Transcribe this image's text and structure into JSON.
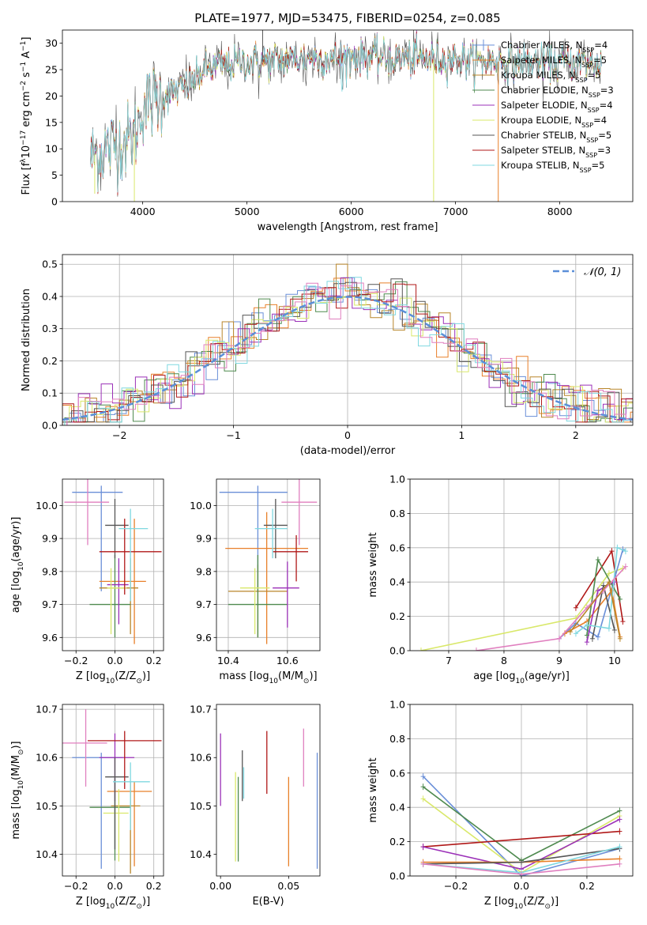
{
  "colors": {
    "Chabrier MILES": "#6a8fd8",
    "Salpeter MILES": "#e8802a",
    "Kroupa MILES": "#b8862a",
    "Chabrier ELODIE": "#4f8a4f",
    "Salpeter ELODIE": "#9b30b8",
    "Kroupa ELODIE": "#d9e86a",
    "Chabrier STELIB": "#555555",
    "Salpeter STELIB": "#b01818",
    "Kroupa STELIB": "#7fd8e0",
    "pink": "#e07fbf",
    "normal_curve": "#5b8fd8"
  },
  "chart_data": [
    {
      "id": "spectrum",
      "type": "line",
      "title": "PLATE=1977, MJD=53475, FIBERID=0254, z=0.085",
      "xlabel": "wavelength [Angstrom, rest frame]",
      "ylabel_parts": [
        "Flux [f",
        "λ",
        "10",
        "−17",
        " erg cm",
        "−2",
        " s",
        "−1",
        " A",
        "−1",
        "]"
      ],
      "xlim": [
        3230,
        8700
      ],
      "ylim": [
        0,
        32.5
      ],
      "xticks": [
        4000,
        5000,
        6000,
        7000,
        8000
      ],
      "yticks": [
        0,
        5,
        10,
        15,
        20,
        25,
        30
      ],
      "grid": false,
      "legend_position": "upper-right",
      "legend": [
        {
          "name": "Chabrier MILES",
          "nssp": "4"
        },
        {
          "name": "Salpeter MILES",
          "nssp": "5"
        },
        {
          "name": "Kroupa MILES",
          "nssp": "5"
        },
        {
          "name": "Chabrier ELODIE",
          "nssp": "3"
        },
        {
          "name": "Salpeter ELODIE",
          "nssp": "4"
        },
        {
          "name": "Kroupa ELODIE",
          "nssp": "4"
        },
        {
          "name": "Chabrier STELIB",
          "nssp": "5"
        },
        {
          "name": "Salpeter STELIB",
          "nssp": "3"
        },
        {
          "name": "Kroupa STELIB",
          "nssp": "5"
        }
      ],
      "envelope": {
        "x": [
          3500,
          3700,
          3900,
          3950,
          4000,
          4200,
          4400,
          4600,
          4800,
          5000,
          5200,
          5400,
          5600,
          5800,
          6000,
          6200,
          6400,
          6600,
          6800,
          7000,
          7200,
          7400,
          7600,
          7800,
          8000,
          8200,
          8400
        ],
        "y": [
          8.5,
          10.5,
          12,
          14,
          18,
          20,
          21.5,
          25,
          26,
          26.5,
          26.5,
          27,
          27.2,
          27,
          27.5,
          27.3,
          27,
          27.2,
          26.8,
          27,
          26.5,
          26.5,
          26.5,
          26.5,
          26.3,
          26.2,
          26
        ]
      },
      "spikes": [
        {
          "x": 5150,
          "y": 32.5
        },
        {
          "x": 3920,
          "y": 0
        },
        {
          "x": 6790,
          "y": 0
        },
        {
          "x": 7410,
          "y": 0
        },
        {
          "x": 3540,
          "y": 1.5
        }
      ]
    },
    {
      "id": "residuals",
      "type": "step",
      "xlabel": "(data-model)/error",
      "ylabel": "Normed distribution",
      "xlim": [
        -2.5,
        2.5
      ],
      "ylim": [
        0,
        0.53
      ],
      "xticks": [
        -2,
        -1,
        0,
        1,
        2
      ],
      "yticks": [
        0.0,
        0.1,
        0.2,
        0.3,
        0.4,
        0.5
      ],
      "grid": true,
      "legend_position": "upper-right",
      "legend": [
        {
          "name": "𝒩(0, 1)"
        }
      ]
    },
    {
      "id": "age-vs-Z",
      "type": "errorbar",
      "xlabel_parts": [
        "Z [log",
        "10",
        "(Z/Z",
        "⊙",
        ")]"
      ],
      "ylabel_parts": [
        "age  [log",
        "10",
        "(age/yr)]"
      ],
      "xlim": [
        -0.27,
        0.25
      ],
      "ylim": [
        9.56,
        10.08
      ],
      "xticks": [
        -0.2,
        0.0,
        0.2
      ],
      "yticks": [
        9.6,
        9.7,
        9.8,
        9.9,
        10.0
      ],
      "grid": true,
      "points": [
        {
          "model": "Chabrier MILES",
          "x": -0.07,
          "xerr": [
            0.15,
            0.11
          ],
          "y": 10.04,
          "yerr": [
            0.3,
            0.02
          ]
        },
        {
          "model": "Salpeter MILES",
          "x": 0.1,
          "xerr": [
            0.18,
            0.06
          ],
          "y": 9.77,
          "yerr": [
            0.19,
            0.19
          ]
        },
        {
          "model": "Kroupa MILES",
          "x": 0.08,
          "xerr": [
            0.16,
            0.04
          ],
          "y": 9.75,
          "yerr": [
            0.14,
            0.09
          ]
        },
        {
          "model": "Chabrier ELODIE",
          "x": 0.0,
          "xerr": [
            0.13,
            0.08
          ],
          "y": 9.7,
          "yerr": [
            0.1,
            0.15
          ]
        },
        {
          "model": "Salpeter ELODIE",
          "x": 0.02,
          "xerr": [
            0.06,
            0.05
          ],
          "y": 9.76,
          "yerr": [
            0.12,
            0.08
          ]
        },
        {
          "model": "Kroupa ELODIE",
          "x": -0.02,
          "xerr": [
            0.02,
            0.08
          ],
          "y": 9.75,
          "yerr": [
            0.14,
            0.06
          ]
        },
        {
          "model": "Chabrier STELIB",
          "x": 0.0,
          "xerr": [
            0.05,
            0.07
          ],
          "y": 9.94,
          "yerr": [
            0.1,
            0.08
          ]
        },
        {
          "model": "Salpeter STELIB",
          "x": 0.05,
          "xerr": [
            0.13,
            0.19
          ],
          "y": 9.86,
          "yerr": [
            0.13,
            0.1
          ]
        },
        {
          "model": "Kroupa STELIB",
          "x": 0.08,
          "xerr": [
            0.06,
            0.09
          ],
          "y": 9.93,
          "yerr": [
            0.22,
            0.06
          ]
        },
        {
          "model": "pink",
          "x": -0.14,
          "xerr": [
            0.12,
            0.11
          ],
          "y": 10.01,
          "yerr": [
            0.13,
            0.07
          ]
        }
      ]
    },
    {
      "id": "age-vs-mass",
      "type": "errorbar",
      "xlabel_parts": [
        "mass [log",
        "10",
        "(M/M",
        "⊙",
        ")]"
      ],
      "xlim": [
        10.36,
        10.71
      ],
      "ylim": [
        9.56,
        10.08
      ],
      "xticks": [
        10.4,
        10.6
      ],
      "yticks": [
        9.6,
        9.7,
        9.8,
        9.9,
        10.0
      ],
      "grid": true,
      "points": [
        {
          "model": "Chabrier MILES",
          "x": 10.5,
          "xerr": [
            0.13,
            0.1
          ],
          "y": 10.04,
          "yerr": [
            0.3,
            0.02
          ]
        },
        {
          "model": "Salpeter MILES",
          "x": 10.53,
          "xerr": [
            0.14,
            0.14
          ],
          "y": 9.87,
          "yerr": [
            0.29,
            0.11
          ]
        },
        {
          "model": "Kroupa MILES",
          "x": 10.5,
          "xerr": [
            0.1,
            0.1
          ],
          "y": 9.74,
          "yerr": [
            0.14,
            0.08
          ]
        },
        {
          "model": "Chabrier ELODIE",
          "x": 10.5,
          "xerr": [
            0.1,
            0.1
          ],
          "y": 9.7,
          "yerr": [
            0.1,
            0.15
          ]
        },
        {
          "model": "Salpeter ELODIE",
          "x": 10.6,
          "xerr": [
            0.05,
            0.04
          ],
          "y": 9.75,
          "yerr": [
            0.12,
            0.08
          ]
        },
        {
          "model": "Kroupa ELODIE",
          "x": 10.49,
          "xerr": [
            0.05,
            0.05
          ],
          "y": 9.75,
          "yerr": [
            0.14,
            0.06
          ]
        },
        {
          "model": "Chabrier STELIB",
          "x": 10.56,
          "xerr": [
            0.04,
            0.04
          ],
          "y": 9.94,
          "yerr": [
            0.1,
            0.08
          ]
        },
        {
          "model": "Salpeter STELIB",
          "x": 10.63,
          "xerr": [
            0.08,
            0.04
          ],
          "y": 9.86,
          "yerr": [
            0.09,
            0.05
          ]
        },
        {
          "model": "Kroupa STELIB",
          "x": 10.55,
          "xerr": [
            0.06,
            0.05
          ],
          "y": 9.93,
          "yerr": [
            0.09,
            0.06
          ]
        },
        {
          "model": "pink",
          "x": 10.64,
          "xerr": [
            0.06,
            0.06
          ],
          "y": 10.01,
          "yerr": [
            0.13,
            0.07
          ]
        }
      ]
    },
    {
      "id": "weight-vs-age",
      "type": "line",
      "xlabel_parts": [
        "age  [log",
        "10",
        "(age/yr)]"
      ],
      "ylabel": "mass weight",
      "xlim": [
        6.3,
        10.33
      ],
      "ylim": [
        0,
        1.0
      ],
      "xticks": [
        7,
        8,
        9,
        10
      ],
      "yticks": [
        0.0,
        0.2,
        0.4,
        0.6,
        0.8,
        1.0
      ],
      "grid": true,
      "series": [
        {
          "model": "Kroupa ELODIE",
          "x": [
            6.5,
            9.3,
            9.9,
            10.15
          ],
          "y": [
            0.0,
            0.19,
            0.45,
            0.48
          ]
        },
        {
          "model": "Salpeter STELIB",
          "x": [
            9.3,
            9.95,
            10.15
          ],
          "y": [
            0.25,
            0.58,
            0.17
          ]
        },
        {
          "model": "Chabrier MILES",
          "x": [
            9.0,
            9.3,
            9.7,
            10.15
          ],
          "y": [
            0.07,
            0.16,
            0.08,
            0.59
          ]
        },
        {
          "model": "Salpeter MILES",
          "x": [
            9.1,
            9.5,
            9.95,
            10.1
          ],
          "y": [
            0.1,
            0.17,
            0.35,
            0.08
          ]
        },
        {
          "model": "Salpeter ELODIE",
          "x": [
            9.5,
            9.7,
            10.0
          ],
          "y": [
            0.05,
            0.35,
            0.4
          ]
        },
        {
          "model": "Chabrier ELODIE",
          "x": [
            9.5,
            9.7,
            10.1
          ],
          "y": [
            0.09,
            0.53,
            0.3
          ]
        },
        {
          "model": "Chabrier STELIB",
          "x": [
            9.6,
            9.8,
            10.0
          ],
          "y": [
            0.07,
            0.38,
            0.12
          ]
        },
        {
          "model": "Kroupa STELIB",
          "x": [
            9.3,
            9.5,
            9.9,
            10.05,
            10.2
          ],
          "y": [
            0.1,
            0.15,
            0.13,
            0.6,
            0.58
          ]
        },
        {
          "model": "pink",
          "x": [
            7.5,
            9.0,
            9.5,
            9.8,
            10.2
          ],
          "y": [
            0.0,
            0.07,
            0.25,
            0.35,
            0.49
          ]
        },
        {
          "model": "Kroupa MILES",
          "x": [
            9.2,
            9.9,
            10.1
          ],
          "y": [
            0.11,
            0.4,
            0.07
          ]
        }
      ]
    },
    {
      "id": "mass-vs-Z",
      "type": "errorbar",
      "xlabel_parts": [
        "Z [log",
        "10",
        "(Z/Z",
        "⊙",
        ")]"
      ],
      "ylabel_parts": [
        "mass [log",
        "10",
        "(M/M",
        "⊙",
        ")]"
      ],
      "xlim": [
        -0.27,
        0.25
      ],
      "ylim": [
        10.355,
        10.71
      ],
      "xticks": [
        -0.2,
        0.0,
        0.2
      ],
      "yticks": [
        10.4,
        10.5,
        10.6,
        10.7
      ],
      "grid": true,
      "points": [
        {
          "model": "Chabrier MILES",
          "x": -0.07,
          "xerr": [
            0.15,
            0.11
          ],
          "y": 10.6,
          "yerr": [
            0.23,
            0.01
          ]
        },
        {
          "model": "Salpeter MILES",
          "x": 0.1,
          "xerr": [
            0.14,
            0.09
          ],
          "y": 10.53,
          "yerr": [
            0.155,
            0.02
          ]
        },
        {
          "model": "Kroupa MILES",
          "x": 0.08,
          "xerr": [
            0.1,
            0.05
          ],
          "y": 10.5,
          "yerr": [
            0.14,
            0.05
          ]
        },
        {
          "model": "Chabrier ELODIE",
          "x": 0.0,
          "xerr": [
            0.13,
            0.08
          ],
          "y": 10.497,
          "yerr": [
            0.11,
            0.06
          ]
        },
        {
          "model": "Salpeter ELODIE",
          "x": 0.0,
          "xerr": [
            0.08,
            0.1
          ],
          "y": 10.6,
          "yerr": [
            0.09,
            0.05
          ]
        },
        {
          "model": "Kroupa ELODIE",
          "x": 0.02,
          "xerr": [
            0.08,
            0.05
          ],
          "y": 10.485,
          "yerr": [
            0.1,
            0.05
          ]
        },
        {
          "model": "Chabrier STELIB",
          "x": 0.0,
          "xerr": [
            0.05,
            0.07
          ],
          "y": 10.56,
          "yerr": [
            0.15,
            0.04
          ]
        },
        {
          "model": "Salpeter STELIB",
          "x": 0.05,
          "xerr": [
            0.19,
            0.19
          ],
          "y": 10.635,
          "yerr": [
            0.1,
            0.02
          ]
        },
        {
          "model": "Kroupa STELIB",
          "x": 0.08,
          "xerr": [
            0.09,
            0.1
          ],
          "y": 10.55,
          "yerr": [
            0.1,
            0.04
          ]
        },
        {
          "model": "pink",
          "x": -0.15,
          "xerr": [
            0.12,
            0.11
          ],
          "y": 10.63,
          "yerr": [
            0.09,
            0.07
          ]
        }
      ]
    },
    {
      "id": "mass-vs-EBV",
      "type": "errorbar",
      "xlabel": "E(B-V)",
      "xlim": [
        -0.003,
        0.073
      ],
      "ylim": [
        10.355,
        10.71
      ],
      "xticks": [
        0.0,
        0.05
      ],
      "yticks": [
        10.4,
        10.5,
        10.6,
        10.7
      ],
      "grid": false,
      "points": [
        {
          "model": "Salpeter ELODIE",
          "x": 0.0,
          "y": 10.575,
          "yerr": [
            0.075,
            0.075
          ]
        },
        {
          "model": "Kroupa ELODIE",
          "x": 0.011,
          "y": 10.485,
          "yerr": [
            0.1,
            0.085
          ]
        },
        {
          "model": "Chabrier ELODIE",
          "x": 0.013,
          "y": 10.47,
          "yerr": [
            0.085,
            0.09
          ]
        },
        {
          "model": "Chabrier STELIB",
          "x": 0.016,
          "y": 10.56,
          "yerr": [
            0.05,
            0.055
          ]
        },
        {
          "model": "Kroupa STELIB",
          "x": 0.017,
          "y": 10.55,
          "yerr": [
            0.035,
            0.03
          ]
        },
        {
          "model": "Salpeter STELIB",
          "x": 0.034,
          "y": 10.59,
          "yerr": [
            0.065,
            0.065
          ]
        },
        {
          "model": "Salpeter MILES",
          "x": 0.05,
          "y": 10.47,
          "yerr": [
            0.095,
            0.09
          ]
        },
        {
          "model": "pink",
          "x": 0.061,
          "y": 10.6,
          "yerr": [
            0.06,
            0.06
          ]
        },
        {
          "model": "Chabrier MILES",
          "x": 0.071,
          "y": 10.49,
          "yerr": [
            0.12,
            0.12
          ]
        }
      ]
    },
    {
      "id": "weight-vs-Z",
      "type": "line",
      "xlabel_parts": [
        "Z [log",
        "10",
        "(Z/Z",
        "⊙",
        ")]"
      ],
      "ylabel": "mass weight",
      "xlim": [
        -0.34,
        0.34
      ],
      "ylim": [
        0,
        1.0
      ],
      "xticks": [
        -0.2,
        0.0,
        0.2
      ],
      "yticks": [
        0.0,
        0.2,
        0.4,
        0.6,
        0.8,
        1.0
      ],
      "grid": true,
      "series": [
        {
          "model": "Chabrier MILES",
          "x": [
            -0.3,
            0.0,
            0.3
          ],
          "y": [
            0.58,
            0.0,
            0.16
          ]
        },
        {
          "model": "Chabrier ELODIE",
          "x": [
            -0.3,
            0.0,
            0.3
          ],
          "y": [
            0.52,
            0.09,
            0.38
          ]
        },
        {
          "model": "Kroupa ELODIE",
          "x": [
            -0.3,
            0.0,
            0.3
          ],
          "y": [
            0.45,
            0.02,
            0.35
          ]
        },
        {
          "model": "Salpeter STELIB",
          "x": [
            -0.3,
            0.3
          ],
          "y": [
            0.17,
            0.26
          ]
        },
        {
          "model": "Salpeter ELODIE",
          "x": [
            -0.3,
            0.0,
            0.3
          ],
          "y": [
            0.17,
            0.04,
            0.33
          ]
        },
        {
          "model": "Salpeter MILES",
          "x": [
            -0.3,
            0.0,
            0.3
          ],
          "y": [
            0.08,
            0.08,
            0.1
          ]
        },
        {
          "model": "Chabrier STELIB",
          "x": [
            -0.3,
            0.0,
            0.3
          ],
          "y": [
            0.07,
            0.08,
            0.16
          ]
        },
        {
          "model": "Kroupa STELIB",
          "x": [
            -0.3,
            0.0,
            0.3
          ],
          "y": [
            0.07,
            0.02,
            0.17
          ]
        },
        {
          "model": "pink",
          "x": [
            -0.3,
            0.0,
            0.3
          ],
          "y": [
            0.07,
            0.01,
            0.07
          ]
        }
      ]
    }
  ]
}
